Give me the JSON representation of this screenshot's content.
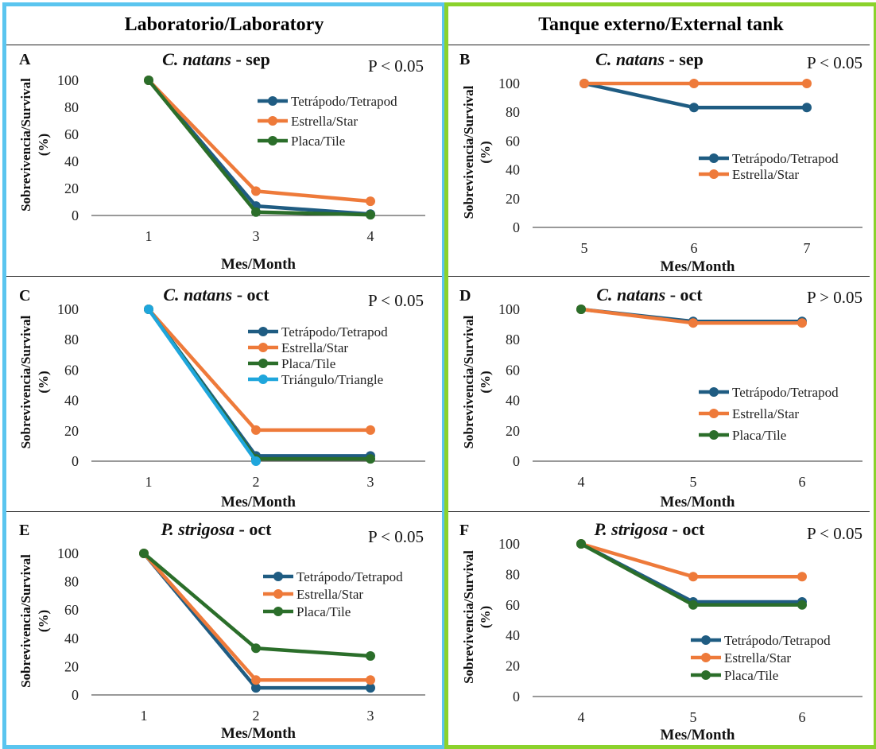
{
  "columns": {
    "left_title": "Laboratorio/Laboratory",
    "right_title": "Tanque externo/External tank",
    "left_color": "#5bc5ef",
    "right_color": "#8bd22c"
  },
  "colors": {
    "Tetrápodo/Tetrapod": "#1f5c82",
    "Estrella/Star": "#ee7a3a",
    "Placa/Tile": "#2b6e2a",
    "Triángulo/Triangle": "#1fa6dc"
  },
  "chart_data": [
    {
      "panel": "A",
      "type": "line",
      "title_species": "C. natans",
      "title_suffix": " - sep",
      "pvalue": "P < 0.05",
      "xlabel": "Mes/Month",
      "ylabel_line1": "Sobrevivencia/Survival",
      "ylabel_line2": "(%)",
      "categories": [
        "1",
        "3",
        "4"
      ],
      "ylim": [
        0,
        100
      ],
      "yticks": [
        0,
        20,
        40,
        60,
        80,
        100
      ],
      "legend_position": "upper-right",
      "series": [
        {
          "name": "Tetrápodo/Tetrapod",
          "values": [
            100,
            7,
            1
          ]
        },
        {
          "name": "Estrella/Star",
          "values": [
            100,
            18,
            10.5
          ]
        },
        {
          "name": "Placa/Tile",
          "values": [
            100,
            2.5,
            0.5
          ]
        }
      ]
    },
    {
      "panel": "B",
      "type": "line",
      "title_species": "C. natans",
      "title_suffix": " - sep",
      "pvalue": "P < 0.05",
      "xlabel": "Mes/Month",
      "ylabel_line1": "Sobrevivencia/Survival",
      "ylabel_line2": "(%)",
      "categories": [
        "5",
        "6",
        "7"
      ],
      "ylim": [
        0,
        100
      ],
      "yticks": [
        0,
        20,
        40,
        60,
        80,
        100
      ],
      "legend_position": "middle-right",
      "series": [
        {
          "name": "Tetrápodo/Tetrapod",
          "values": [
            100,
            83.3,
            83.3
          ]
        },
        {
          "name": "Estrella/Star",
          "values": [
            100,
            100,
            100
          ]
        }
      ]
    },
    {
      "panel": "C",
      "type": "line",
      "title_species": "C. natans",
      "title_suffix": " - oct",
      "pvalue": "P < 0.05",
      "xlabel": "Mes/Month",
      "ylabel_line1": "Sobrevivencia/Survival",
      "ylabel_line2": "(%)",
      "categories": [
        "1",
        "2",
        "3"
      ],
      "ylim": [
        0,
        100
      ],
      "yticks": [
        0,
        20,
        40,
        60,
        80,
        100
      ],
      "legend_position": "upper-right",
      "series": [
        {
          "name": "Tetrápodo/Tetrapod",
          "values": [
            100,
            3.5,
            3.5
          ]
        },
        {
          "name": "Estrella/Star",
          "values": [
            100,
            20.5,
            20.5
          ]
        },
        {
          "name": "Placa/Tile",
          "values": [
            100,
            1.5,
            1.5
          ]
        },
        {
          "name": "Triángulo/Triangle",
          "values": [
            100,
            0,
            null
          ]
        }
      ]
    },
    {
      "panel": "D",
      "type": "line",
      "title_species": "C. natans",
      "title_suffix": " - oct",
      "pvalue": "P > 0.05",
      "xlabel": "Mes/Month",
      "ylabel_line1": "Sobrevivencia/Survival",
      "ylabel_line2": "(%)",
      "categories": [
        "4",
        "5",
        "6"
      ],
      "ylim": [
        0,
        100
      ],
      "yticks": [
        0,
        20,
        40,
        60,
        80,
        100
      ],
      "legend_position": "lower-right",
      "series": [
        {
          "name": "Tetrápodo/Tetrapod",
          "values": [
            100,
            92,
            92
          ]
        },
        {
          "name": "Estrella/Star",
          "values": [
            100,
            91,
            91
          ]
        },
        {
          "name": "Placa/Tile",
          "values": [
            100,
            null,
            null
          ]
        }
      ]
    },
    {
      "panel": "E",
      "type": "line",
      "title_species": "P. strigosa",
      "title_suffix": " - oct",
      "pvalue": "P < 0.05",
      "xlabel": "Mes/Month",
      "ylabel_line1": "Sobrevivencia/Survival",
      "ylabel_line2": "(%)",
      "categories": [
        "1",
        "2",
        "3"
      ],
      "ylim": [
        0,
        100
      ],
      "yticks": [
        0,
        20,
        40,
        60,
        80,
        100
      ],
      "legend_position": "upper-right",
      "series": [
        {
          "name": "Tetrápodo/Tetrapod",
          "values": [
            100,
            5,
            5
          ]
        },
        {
          "name": "Estrella/Star",
          "values": [
            100,
            10.5,
            10.5
          ]
        },
        {
          "name": "Placa/Tile",
          "values": [
            100,
            33,
            27.5
          ]
        }
      ]
    },
    {
      "panel": "F",
      "type": "line",
      "title_species": "P. strigosa",
      "title_suffix": " - oct",
      "pvalue": "P < 0.05",
      "xlabel": "Mes/Month",
      "ylabel_line1": "Sobrevivencia/Survival",
      "ylabel_line2": "(%)",
      "categories": [
        "4",
        "5",
        "6"
      ],
      "ylim": [
        0,
        100
      ],
      "yticks": [
        0,
        20,
        40,
        60,
        80,
        100
      ],
      "legend_position": "lower-right",
      "series": [
        {
          "name": "Tetrápodo/Tetrapod",
          "values": [
            100,
            62,
            62
          ]
        },
        {
          "name": "Estrella/Star",
          "values": [
            100,
            78.5,
            78.5
          ]
        },
        {
          "name": "Placa/Tile",
          "values": [
            100,
            60,
            60
          ]
        }
      ]
    }
  ]
}
